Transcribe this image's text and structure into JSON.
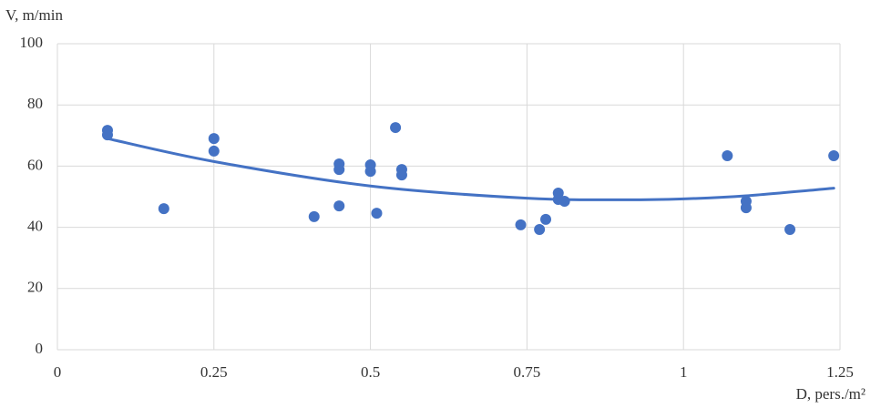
{
  "chart_data": {
    "type": "scatter",
    "x_label": "D, pers./m²",
    "y_label": "V, m/min",
    "xlim": [
      0,
      1.25
    ],
    "ylim": [
      0,
      100
    ],
    "xticks": [
      0,
      0.25,
      0.5,
      0.75,
      1,
      1.25
    ],
    "yticks": [
      0,
      20,
      40,
      60,
      80,
      100
    ],
    "grid": true,
    "color": "#4472c4",
    "x": [
      0.08,
      0.08,
      0.17,
      0.25,
      0.25,
      0.41,
      0.45,
      0.45,
      0.45,
      0.5,
      0.5,
      0.51,
      0.54,
      0.55,
      0.55,
      0.74,
      0.77,
      0.78,
      0.8,
      0.8,
      0.81,
      1.07,
      1.1,
      1.1,
      1.17,
      1.24
    ],
    "values": [
      71.7,
      70.2,
      46.1,
      69,
      64.9,
      43.5,
      60.7,
      58.9,
      47,
      60.4,
      58.3,
      44.6,
      72.6,
      58.9,
      57.1,
      40.8,
      39.3,
      42.6,
      51.2,
      49.1,
      48.5,
      63.4,
      48.5,
      46.4,
      39.3,
      63.4
    ],
    "trendline": {
      "x": [
        0.08,
        0.25,
        0.5,
        0.75,
        0.9,
        1,
        1.1,
        1.24
      ],
      "values": [
        69,
        61.5,
        53.5,
        49.5,
        49,
        49.3,
        50.3,
        52.8
      ]
    }
  }
}
